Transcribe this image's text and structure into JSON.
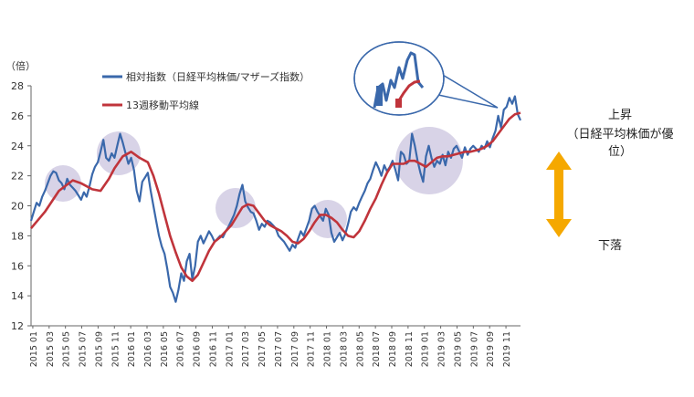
{
  "chart_data": {
    "type": "line",
    "y_unit": "（倍）",
    "ylim": [
      12,
      28
    ],
    "yticks": [
      12,
      14,
      16,
      18,
      20,
      22,
      24,
      26,
      28
    ],
    "x_labels": [
      "2015 01",
      "2015 03",
      "2015 05",
      "2015 07",
      "2015 09",
      "2015 11",
      "2016 01",
      "2016 03",
      "2016 05",
      "2016 07",
      "2016 09",
      "2016 11",
      "2017 01",
      "2017 03",
      "2017 05",
      "2017 07",
      "2017 09",
      "2017 11",
      "2018 01",
      "2018 03",
      "2018 05",
      "2018 07",
      "2018 09",
      "2018 11",
      "2019 01",
      "2019 03",
      "2019 05",
      "2019 07",
      "2019 09",
      "2019 11"
    ],
    "grid": false,
    "legend_position": "top-left",
    "series": [
      {
        "name": "相対指数（日経平均株価/マザーズ指数）",
        "color": "#3a68ab",
        "values": [
          [
            0,
            19.0
          ],
          [
            1,
            19.6
          ],
          [
            2,
            20.2
          ],
          [
            3,
            20.0
          ],
          [
            4,
            20.6
          ],
          [
            5,
            21.0
          ],
          [
            6,
            21.5
          ],
          [
            7,
            22.0
          ],
          [
            8,
            22.3
          ],
          [
            9,
            22.2
          ],
          [
            10,
            21.7
          ],
          [
            11,
            21.5
          ],
          [
            12,
            21.1
          ],
          [
            13,
            21.8
          ],
          [
            14,
            21.4
          ],
          [
            15,
            21.2
          ],
          [
            16,
            21.0
          ],
          [
            17,
            20.7
          ],
          [
            18,
            20.4
          ],
          [
            19,
            20.9
          ],
          [
            20,
            20.6
          ],
          [
            21,
            21.3
          ],
          [
            22,
            22.1
          ],
          [
            23,
            22.6
          ],
          [
            24,
            22.9
          ],
          [
            25,
            23.6
          ],
          [
            26,
            24.4
          ],
          [
            27,
            23.2
          ],
          [
            28,
            23.0
          ],
          [
            29,
            23.5
          ],
          [
            30,
            23.2
          ],
          [
            31,
            24.0
          ],
          [
            32,
            24.8
          ],
          [
            33,
            24.2
          ],
          [
            34,
            23.5
          ],
          [
            35,
            22.8
          ],
          [
            36,
            23.2
          ],
          [
            37,
            22.4
          ],
          [
            38,
            21.0
          ],
          [
            39,
            20.3
          ],
          [
            40,
            21.6
          ],
          [
            41,
            21.9
          ],
          [
            42,
            22.2
          ],
          [
            43,
            21.0
          ],
          [
            44,
            20.0
          ],
          [
            45,
            19.0
          ],
          [
            46,
            18.0
          ],
          [
            47,
            17.3
          ],
          [
            48,
            16.8
          ],
          [
            49,
            15.8
          ],
          [
            50,
            14.6
          ],
          [
            51,
            14.2
          ],
          [
            52,
            13.6
          ],
          [
            53,
            14.4
          ],
          [
            54,
            15.5
          ],
          [
            55,
            15.0
          ],
          [
            56,
            16.3
          ],
          [
            57,
            16.8
          ],
          [
            58,
            15.1
          ],
          [
            59,
            16.0
          ],
          [
            60,
            17.6
          ],
          [
            61,
            18.0
          ],
          [
            62,
            17.5
          ],
          [
            63,
            17.9
          ],
          [
            64,
            18.3
          ],
          [
            65,
            18.0
          ],
          [
            66,
            17.6
          ],
          [
            67,
            17.8
          ],
          [
            68,
            18.0
          ],
          [
            69,
            17.9
          ],
          [
            70,
            18.3
          ],
          [
            71,
            18.6
          ],
          [
            72,
            19.0
          ],
          [
            73,
            19.4
          ],
          [
            74,
            20.0
          ],
          [
            75,
            20.8
          ],
          [
            76,
            21.4
          ],
          [
            77,
            20.3
          ],
          [
            78,
            19.9
          ],
          [
            79,
            19.6
          ],
          [
            80,
            19.5
          ],
          [
            81,
            19.0
          ],
          [
            82,
            18.4
          ],
          [
            83,
            18.8
          ],
          [
            84,
            18.6
          ],
          [
            85,
            19.0
          ],
          [
            86,
            18.9
          ],
          [
            87,
            18.7
          ],
          [
            88,
            18.5
          ],
          [
            89,
            18.0
          ],
          [
            90,
            17.8
          ],
          [
            91,
            17.6
          ],
          [
            92,
            17.3
          ],
          [
            93,
            17.0
          ],
          [
            94,
            17.4
          ],
          [
            95,
            17.2
          ],
          [
            96,
            17.8
          ],
          [
            97,
            18.3
          ],
          [
            98,
            18.0
          ],
          [
            99,
            18.5
          ],
          [
            100,
            19.0
          ],
          [
            101,
            19.8
          ],
          [
            102,
            20.0
          ],
          [
            103,
            19.6
          ],
          [
            104,
            19.3
          ],
          [
            105,
            19.0
          ],
          [
            106,
            19.8
          ],
          [
            107,
            19.4
          ],
          [
            108,
            18.2
          ],
          [
            109,
            17.6
          ],
          [
            110,
            17.9
          ],
          [
            111,
            18.2
          ],
          [
            112,
            17.7
          ],
          [
            113,
            18.1
          ],
          [
            114,
            18.8
          ],
          [
            115,
            19.6
          ],
          [
            116,
            19.9
          ],
          [
            117,
            19.7
          ],
          [
            118,
            20.2
          ],
          [
            119,
            20.6
          ],
          [
            120,
            21.0
          ],
          [
            121,
            21.5
          ],
          [
            122,
            21.8
          ],
          [
            123,
            22.4
          ],
          [
            124,
            22.9
          ],
          [
            125,
            22.5
          ],
          [
            126,
            22.0
          ],
          [
            127,
            22.7
          ],
          [
            128,
            22.3
          ],
          [
            129,
            22.6
          ],
          [
            130,
            23.0
          ],
          [
            131,
            22.4
          ],
          [
            132,
            21.7
          ],
          [
            133,
            23.6
          ],
          [
            134,
            23.4
          ],
          [
            135,
            22.8
          ],
          [
            136,
            23.0
          ],
          [
            137,
            24.8
          ],
          [
            138,
            24.0
          ],
          [
            139,
            23.0
          ],
          [
            140,
            22.2
          ],
          [
            141,
            21.6
          ],
          [
            142,
            23.3
          ],
          [
            143,
            24.0
          ],
          [
            144,
            23.2
          ],
          [
            145,
            22.6
          ],
          [
            146,
            23.0
          ],
          [
            147,
            22.8
          ],
          [
            148,
            23.4
          ],
          [
            149,
            22.7
          ],
          [
            150,
            23.6
          ],
          [
            151,
            23.2
          ],
          [
            152,
            23.8
          ],
          [
            153,
            24.0
          ],
          [
            154,
            23.6
          ],
          [
            155,
            23.2
          ],
          [
            156,
            23.9
          ],
          [
            157,
            23.4
          ],
          [
            158,
            23.8
          ],
          [
            159,
            24.0
          ],
          [
            160,
            23.8
          ],
          [
            161,
            23.6
          ],
          [
            162,
            24.0
          ],
          [
            163,
            23.8
          ],
          [
            164,
            24.3
          ],
          [
            165,
            23.9
          ],
          [
            166,
            24.5
          ],
          [
            167,
            25.0
          ],
          [
            168,
            26.0
          ],
          [
            169,
            25.2
          ],
          [
            170,
            26.4
          ],
          [
            171,
            26.6
          ],
          [
            172,
            27.2
          ],
          [
            173,
            26.8
          ],
          [
            174,
            27.3
          ],
          [
            175,
            26.1
          ],
          [
            176,
            25.7
          ]
        ]
      },
      {
        "name": "13週移動平均線",
        "color": "#c0343b",
        "values": [
          [
            0,
            18.5
          ],
          [
            5,
            19.6
          ],
          [
            10,
            21.0
          ],
          [
            15,
            21.7
          ],
          [
            18,
            21.5
          ],
          [
            22,
            21.1
          ],
          [
            25,
            21.0
          ],
          [
            28,
            21.8
          ],
          [
            30,
            22.5
          ],
          [
            33,
            23.3
          ],
          [
            36,
            23.6
          ],
          [
            39,
            23.2
          ],
          [
            42,
            22.9
          ],
          [
            44,
            22.0
          ],
          [
            46,
            20.8
          ],
          [
            48,
            19.4
          ],
          [
            50,
            18.0
          ],
          [
            52,
            16.9
          ],
          [
            54,
            15.9
          ],
          [
            56,
            15.3
          ],
          [
            58,
            15.0
          ],
          [
            60,
            15.4
          ],
          [
            62,
            16.2
          ],
          [
            64,
            17.0
          ],
          [
            66,
            17.6
          ],
          [
            68,
            17.9
          ],
          [
            70,
            18.3
          ],
          [
            72,
            18.7
          ],
          [
            74,
            19.3
          ],
          [
            76,
            19.9
          ],
          [
            78,
            20.1
          ],
          [
            80,
            20.0
          ],
          [
            82,
            19.5
          ],
          [
            84,
            19.0
          ],
          [
            86,
            18.7
          ],
          [
            88,
            18.5
          ],
          [
            90,
            18.3
          ],
          [
            92,
            18.0
          ],
          [
            94,
            17.6
          ],
          [
            96,
            17.5
          ],
          [
            98,
            17.8
          ],
          [
            100,
            18.3
          ],
          [
            102,
            18.9
          ],
          [
            104,
            19.4
          ],
          [
            106,
            19.4
          ],
          [
            108,
            19.2
          ],
          [
            110,
            18.9
          ],
          [
            112,
            18.4
          ],
          [
            114,
            18.0
          ],
          [
            116,
            17.9
          ],
          [
            118,
            18.3
          ],
          [
            120,
            19.0
          ],
          [
            122,
            19.8
          ],
          [
            124,
            20.5
          ],
          [
            126,
            21.4
          ],
          [
            128,
            22.2
          ],
          [
            130,
            22.8
          ],
          [
            132,
            22.8
          ],
          [
            134,
            22.8
          ],
          [
            136,
            23.0
          ],
          [
            138,
            23.0
          ],
          [
            140,
            22.8
          ],
          [
            142,
            22.6
          ],
          [
            144,
            22.9
          ],
          [
            146,
            23.2
          ],
          [
            148,
            23.3
          ],
          [
            150,
            23.3
          ],
          [
            152,
            23.4
          ],
          [
            154,
            23.5
          ],
          [
            156,
            23.6
          ],
          [
            158,
            23.6
          ],
          [
            160,
            23.7
          ],
          [
            162,
            23.8
          ],
          [
            164,
            24.0
          ],
          [
            166,
            24.3
          ],
          [
            168,
            24.8
          ],
          [
            170,
            25.3
          ],
          [
            172,
            25.8
          ],
          [
            174,
            26.1
          ],
          [
            176,
            26.2
          ]
        ]
      }
    ],
    "annotations": {
      "right_label_top_line1": "上昇",
      "right_label_top_line2": "（日経平均株価が優位）",
      "right_label_bottom": "下落"
    }
  }
}
